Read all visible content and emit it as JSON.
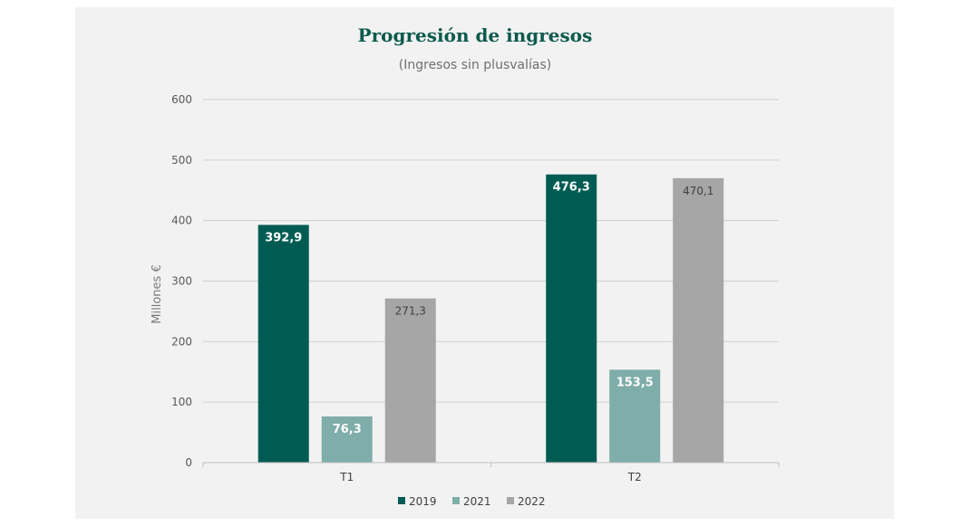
{
  "chart_data": {
    "type": "bar",
    "title": "Progresión de ingresos",
    "subtitle": "(Ingresos sin plusvalías)",
    "ylabel": "Millones €",
    "xlabel": "",
    "ylim": [
      0,
      600
    ],
    "yticks": [
      0,
      100,
      200,
      300,
      400,
      500,
      600
    ],
    "categories": [
      "T1",
      "T2"
    ],
    "series": [
      {
        "name": "2019",
        "color": "#005c53",
        "values": [
          392.9,
          476.3
        ],
        "labels": [
          "392,9",
          "476,3"
        ],
        "label_color": "#ffffff",
        "label_weight": "bold"
      },
      {
        "name": "2021",
        "color": "#7fada9",
        "values": [
          76.3,
          153.5
        ],
        "labels": [
          "76,3",
          "153,5"
        ],
        "label_color": "#ffffff",
        "label_weight": "bold"
      },
      {
        "name": "2022",
        "color": "#a6a6a6",
        "values": [
          271.3,
          470.1
        ],
        "labels": [
          "271,3",
          "470,1"
        ],
        "label_color": "#404040",
        "label_weight": "normal"
      }
    ],
    "grid": true,
    "legend_position": "bottom-center",
    "colors": {
      "title": "#0d5a4e",
      "axis_text": "#595959",
      "grid": "#d0d0d0"
    }
  }
}
